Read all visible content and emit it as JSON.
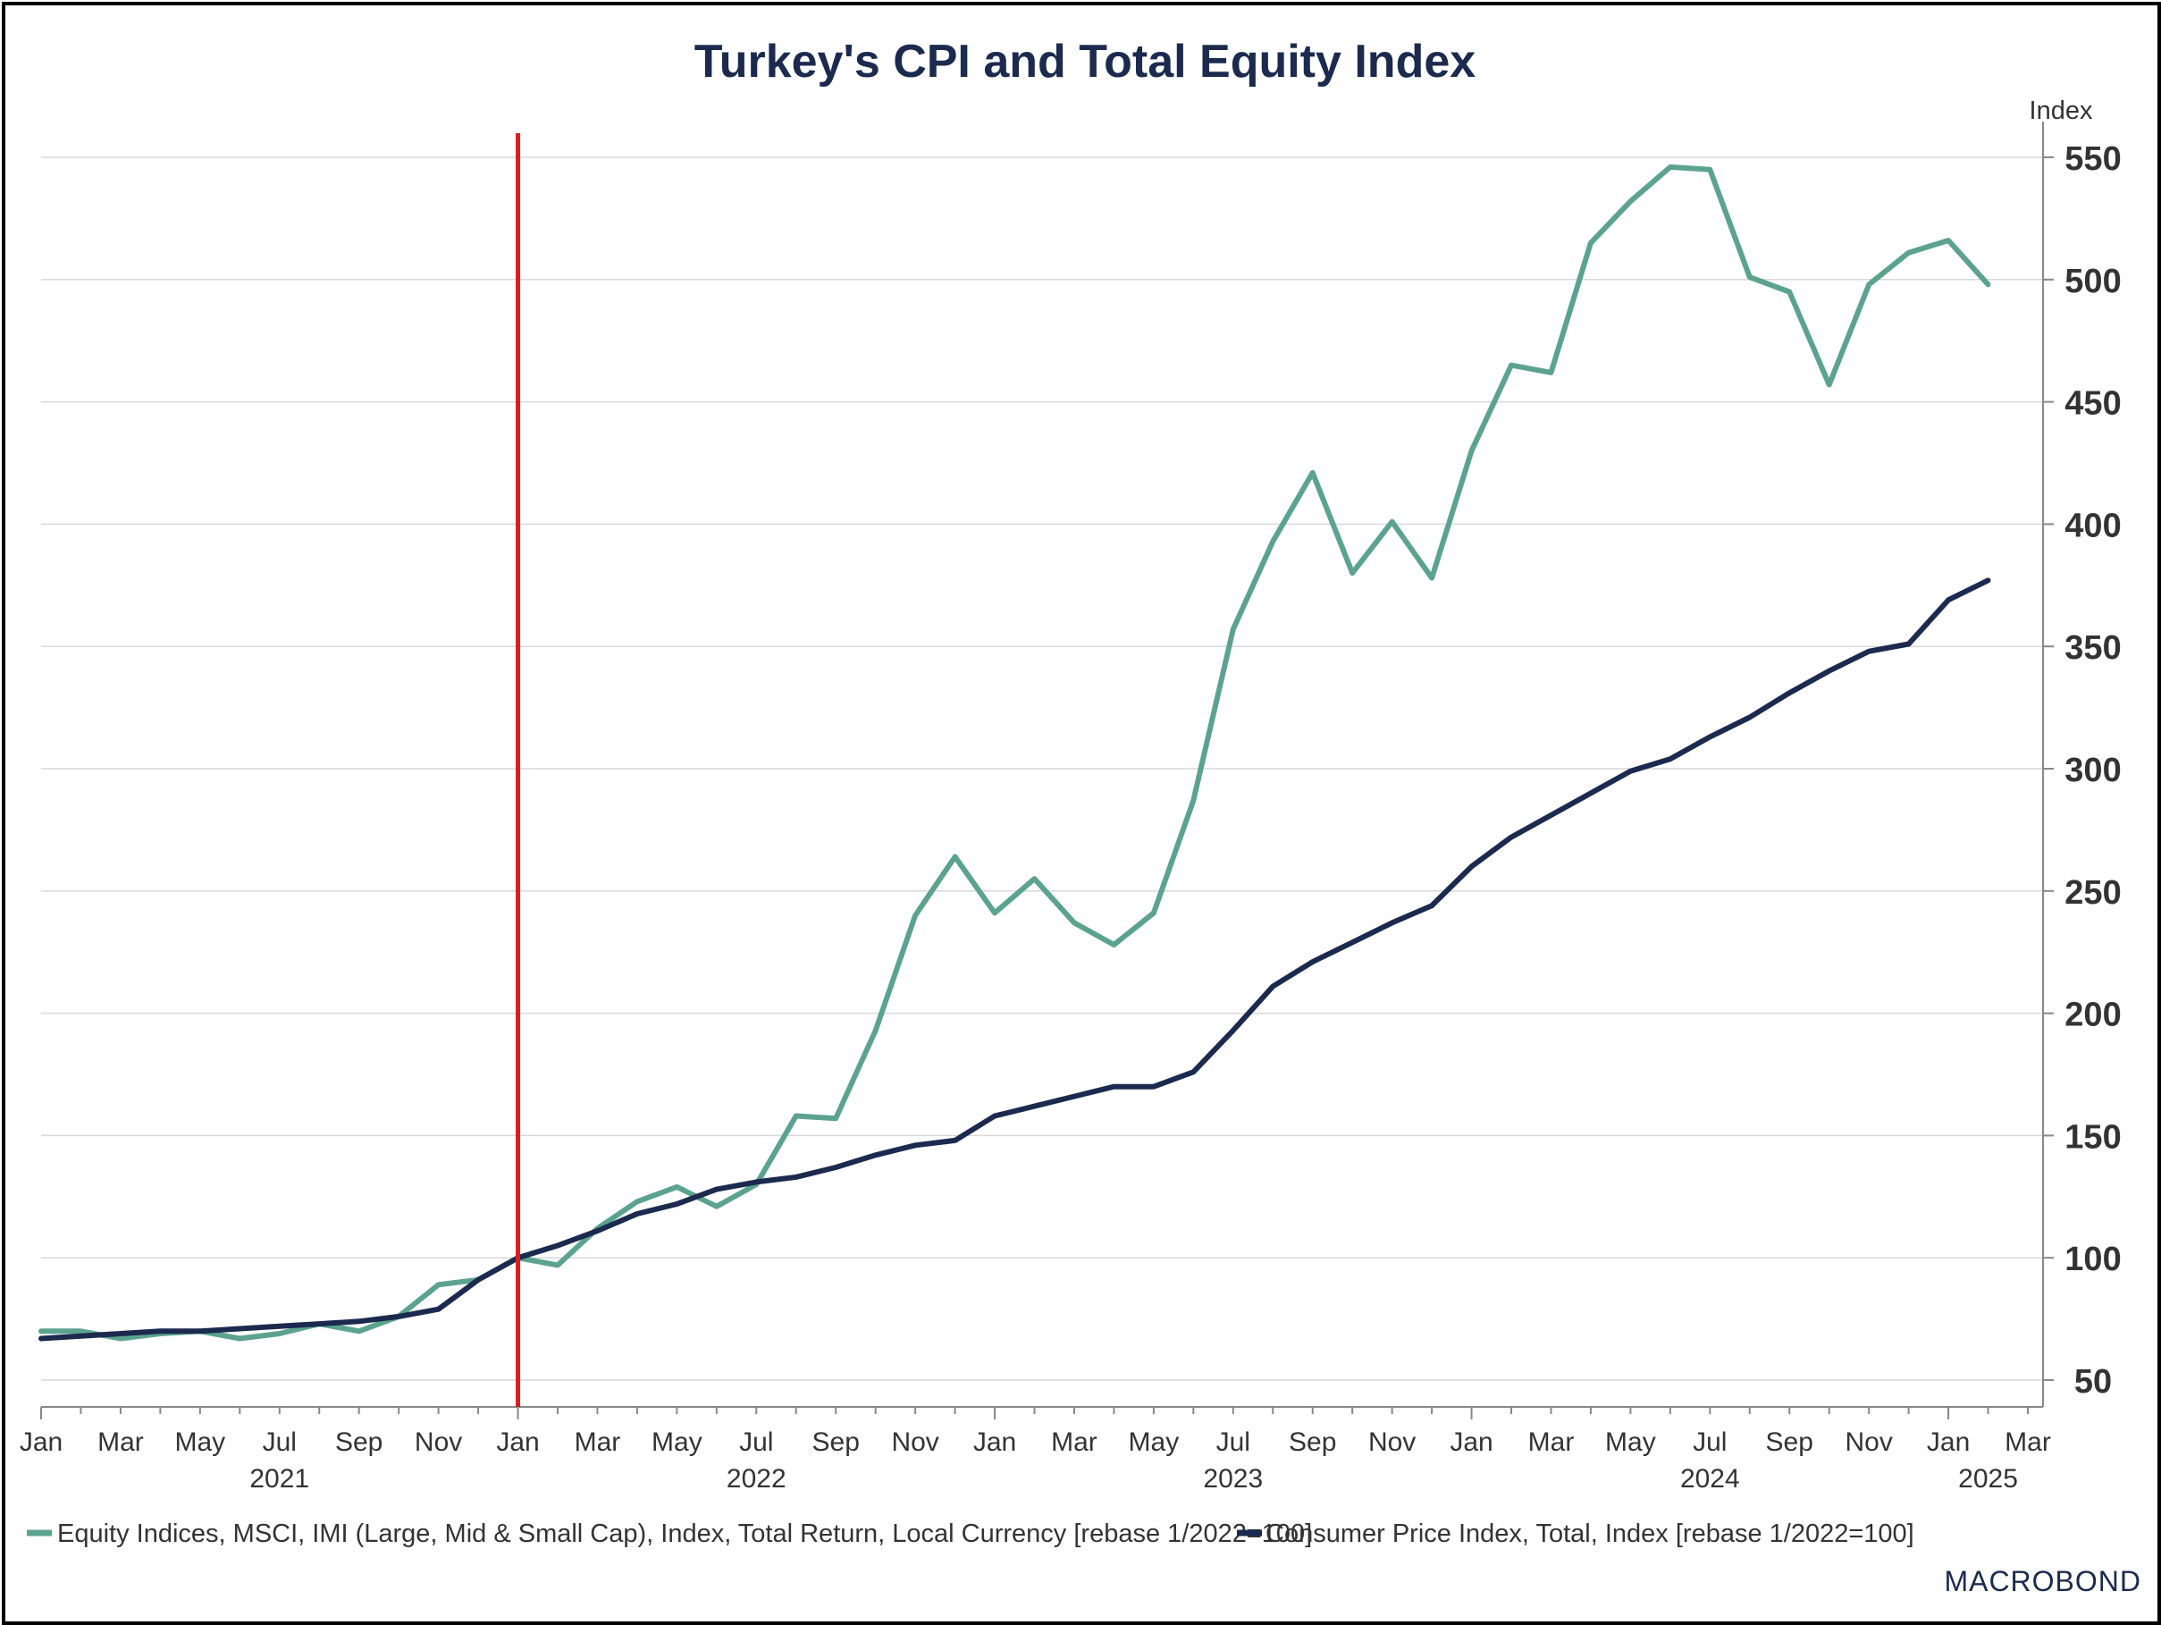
{
  "chart_data": {
    "type": "line",
    "title": "Turkey's CPI and Total Equity Index",
    "y_unit_label": "Index",
    "ylim": [
      50,
      550
    ],
    "yticks": [
      50,
      100,
      150,
      200,
      250,
      300,
      350,
      400,
      450,
      500,
      550
    ],
    "grid": true,
    "x_start": "2021-01",
    "x_end": "2025-03",
    "x_tick_labels": [
      "Jan",
      "Mar",
      "May",
      "Jul",
      "Sep",
      "Nov",
      "Jan",
      "Mar",
      "May",
      "Jul",
      "Sep",
      "Nov",
      "Jan",
      "Mar",
      "May",
      "Jul",
      "Sep",
      "Nov",
      "Jan",
      "Mar",
      "May",
      "Jul",
      "Sep",
      "Nov",
      "Jan",
      "Mar"
    ],
    "x_year_labels": [
      "2021",
      "2022",
      "2023",
      "2024",
      "2025"
    ],
    "vertical_marker": {
      "x": "2022-01",
      "color": "#e31a1c"
    },
    "legend_position": "bottom-left",
    "x": [
      "2021-01",
      "2021-02",
      "2021-03",
      "2021-04",
      "2021-05",
      "2021-06",
      "2021-07",
      "2021-08",
      "2021-09",
      "2021-10",
      "2021-11",
      "2021-12",
      "2022-01",
      "2022-02",
      "2022-03",
      "2022-04",
      "2022-05",
      "2022-06",
      "2022-07",
      "2022-08",
      "2022-09",
      "2022-10",
      "2022-11",
      "2022-12",
      "2023-01",
      "2023-02",
      "2023-03",
      "2023-04",
      "2023-05",
      "2023-06",
      "2023-07",
      "2023-08",
      "2023-09",
      "2023-10",
      "2023-11",
      "2023-12",
      "2024-01",
      "2024-02",
      "2024-03",
      "2024-04",
      "2024-05",
      "2024-06",
      "2024-07",
      "2024-08",
      "2024-09",
      "2024-10",
      "2024-11",
      "2024-12",
      "2025-01",
      "2025-02"
    ],
    "series": [
      {
        "name": "Equity Indices, MSCI, IMI (Large, Mid & Small Cap), Index, Total Return, Local Currency [rebase 1/2022=100]",
        "color": "#5ba38f",
        "values": [
          70,
          70,
          67,
          69,
          70,
          67,
          69,
          73,
          70,
          76,
          89,
          91,
          100,
          97,
          112,
          123,
          129,
          121,
          130,
          158,
          157,
          193,
          240,
          264,
          241,
          255,
          237,
          228,
          241,
          287,
          357,
          393,
          421,
          380,
          401,
          378,
          430,
          465,
          462,
          515,
          532,
          546,
          545,
          501,
          495,
          457,
          498,
          511,
          516,
          498
        ]
      },
      {
        "name": "Consumer Price Index, Total, Index [rebase 1/2022=100]",
        "color": "#1b2a4e",
        "values": [
          67,
          68,
          69,
          70,
          70,
          71,
          72,
          73,
          74,
          76,
          79,
          91,
          100,
          105,
          111,
          118,
          122,
          128,
          131,
          133,
          137,
          142,
          146,
          148,
          158,
          162,
          166,
          170,
          170,
          176,
          193,
          211,
          221,
          229,
          237,
          244,
          260,
          272,
          281,
          290,
          299,
          304,
          313,
          321,
          331,
          340,
          348,
          351,
          369,
          377
        ]
      }
    ]
  },
  "branding": {
    "logo_text": "MACROBOND"
  }
}
